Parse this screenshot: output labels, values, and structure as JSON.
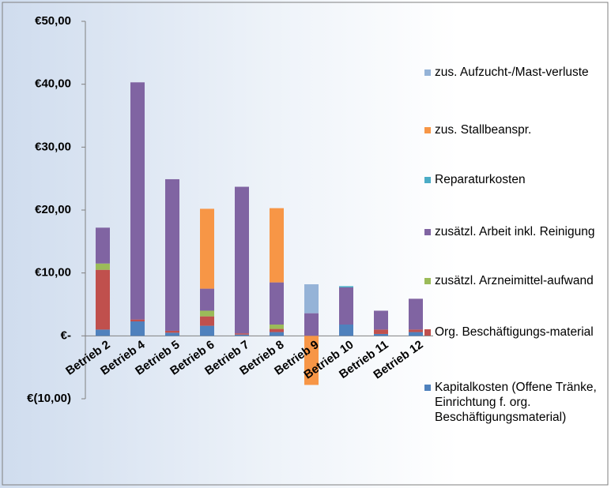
{
  "chart_data": {
    "type": "stacked_bar",
    "categories": [
      "Betrieb 2",
      "Betrieb 4",
      "Betrieb 5",
      "Betrieb 6",
      "Betrieb 7",
      "Betrieb 8",
      "Betrieb 9",
      "Betrieb 10",
      "Betrieb 11",
      "Betrieb 12"
    ],
    "series": [
      {
        "name": "Kapitalkosten (Offene Tränke, Einrichtung f. org. Beschäftigungsmaterial)",
        "color": "#4f81bd",
        "values": [
          1.0,
          2.3,
          0.5,
          1.6,
          0.2,
          0.6,
          0,
          1.8,
          0.3,
          0.6
        ]
      },
      {
        "name": "Org. Beschäftigungs-material",
        "color": "#c0504d",
        "values": [
          9.5,
          0.3,
          0.3,
          1.5,
          0.2,
          0.5,
          0,
          0,
          0.7,
          0.4
        ]
      },
      {
        "name": "zusätzl. Arzneimittel-aufwand",
        "color": "#9bbb59",
        "values": [
          1.0,
          0,
          0,
          0.9,
          0,
          0.7,
          0,
          0,
          0,
          0
        ]
      },
      {
        "name": "zusätzl. Arbeit inkl. Reinigung",
        "color": "#8064a2",
        "values": [
          5.7,
          37.7,
          24.1,
          3.5,
          23.3,
          6.7,
          3.6,
          5.9,
          3.0,
          4.9
        ]
      },
      {
        "name": "Reparaturkosten",
        "color": "#4bacc6",
        "values": [
          0,
          0,
          0,
          0,
          0,
          0,
          0,
          0.2,
          0,
          0
        ]
      },
      {
        "name": "zus. Stallbeanspr.",
        "color": "#f79646",
        "values": [
          0,
          0,
          0,
          12.7,
          0,
          11.8,
          -7.8,
          0,
          0,
          0
        ]
      },
      {
        "name": "zus. Aufzucht-/Mast-verluste",
        "color": "#95b3d7",
        "values": [
          0,
          0,
          0,
          0,
          0,
          0,
          4.6,
          0,
          0,
          0
        ]
      }
    ],
    "ylim": [
      -10,
      50
    ],
    "yticks": [
      {
        "value": -10,
        "label": "€(10,00)"
      },
      {
        "value": 0,
        "label": "€-"
      },
      {
        "value": 10,
        "label": "€10,00"
      },
      {
        "value": 20,
        "label": "€20,00"
      },
      {
        "value": 30,
        "label": "€30,00"
      },
      {
        "value": 40,
        "label": "€40,00"
      },
      {
        "value": 50,
        "label": "€50,00"
      }
    ],
    "legend": "right"
  }
}
